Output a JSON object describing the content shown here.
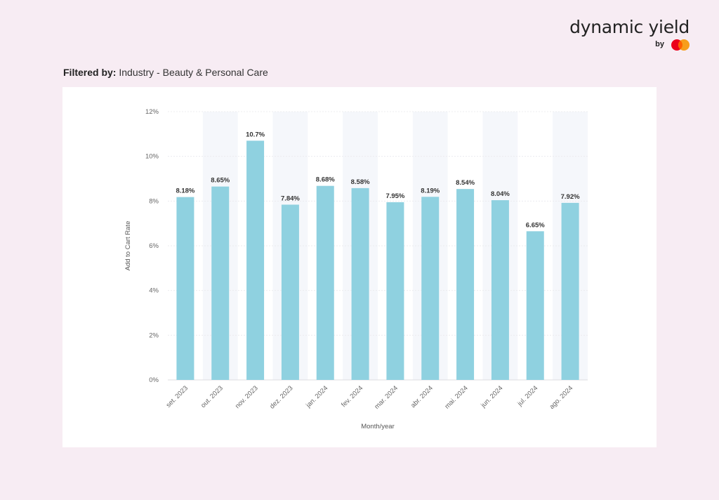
{
  "brand": {
    "name": "dynamic yield",
    "by": "by",
    "logo_colors": [
      "#eb001b",
      "#f79e1b",
      "#ff5f00"
    ]
  },
  "filter": {
    "label": "Filtered by:",
    "value": "Industry - Beauty & Personal Care"
  },
  "colors": {
    "page_bg": "#f7ecf3",
    "bar": "#8fd1e0",
    "band": "#f5f7fb"
  },
  "chart_data": {
    "type": "bar",
    "categories": [
      "set. 2023",
      "out. 2023",
      "nov. 2023",
      "dez. 2023",
      "jan. 2024",
      "fev. 2024",
      "mar. 2024",
      "abr. 2024",
      "mai. 2024",
      "jun. 2024",
      "jul. 2024",
      "ago. 2024"
    ],
    "values": [
      8.18,
      8.65,
      10.7,
      7.84,
      8.68,
      8.58,
      7.95,
      8.19,
      8.54,
      8.04,
      6.65,
      7.92
    ],
    "data_labels": [
      "8.18%",
      "8.65%",
      "10.7%",
      "7.84%",
      "8.68%",
      "8.58%",
      "7.95%",
      "8.19%",
      "8.54%",
      "8.04%",
      "6.65%",
      "7.92%"
    ],
    "xlabel": "Month/year",
    "ylabel": "Add to Cart Rate",
    "ylim": [
      0,
      12
    ],
    "yticks": [
      "0%",
      "2%",
      "4%",
      "6%",
      "8%",
      "10%",
      "12%"
    ],
    "grid": true,
    "alternating_bands": true
  }
}
